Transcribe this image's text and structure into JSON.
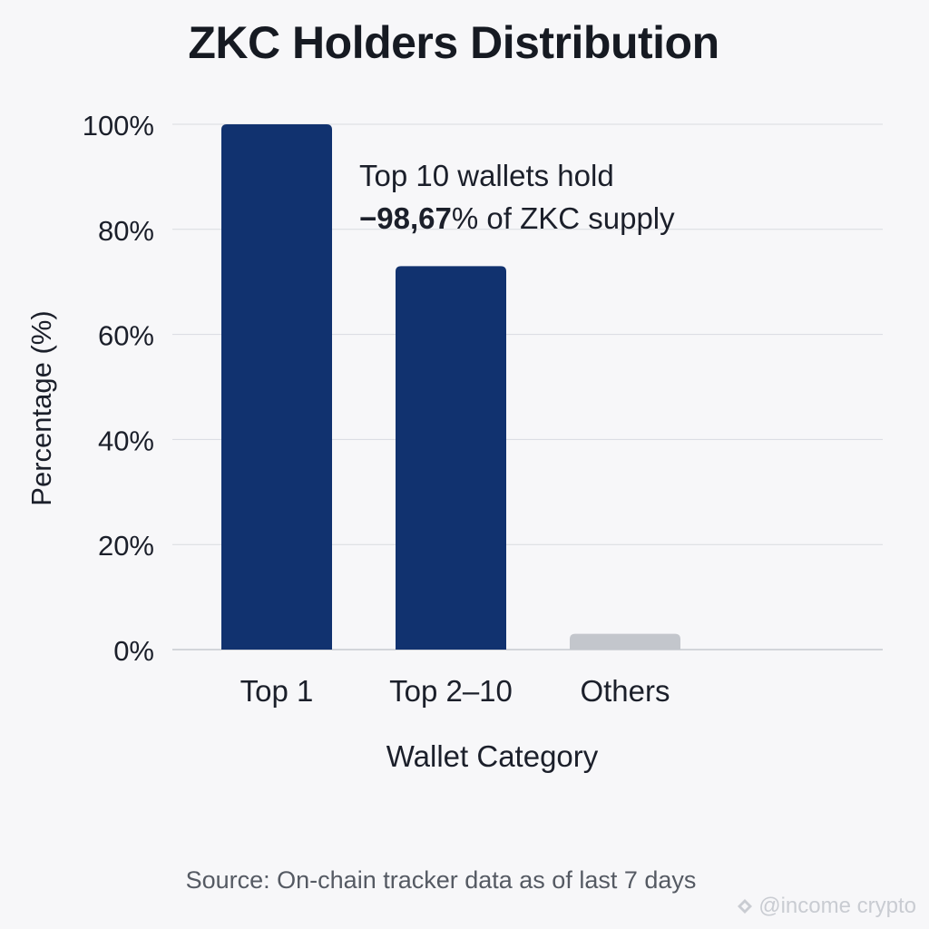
{
  "chart_data": {
    "type": "bar",
    "title": "ZKC Holders Distribution",
    "categories": [
      "Top 1",
      "Top 2–10",
      "Others"
    ],
    "values": [
      100,
      73,
      3
    ],
    "ylabel": "Percentage (%)",
    "xlabel": "Wallet Category",
    "ylim": [
      0,
      100
    ],
    "yticks": [
      "0%",
      "20%",
      "40%",
      "60%",
      "80%",
      "100%"
    ],
    "grid": true,
    "colors": [
      "#11326f",
      "#11326f",
      "#c3c6cc"
    ],
    "annotation": {
      "line1": "Top 10 wallets hold",
      "prefix": "−",
      "value": "98,67",
      "suffix": "% of ZKC supply"
    }
  },
  "footer": {
    "source": "Source: On-chain tracker data as of last 7 days",
    "watermark": "@income crypto"
  }
}
